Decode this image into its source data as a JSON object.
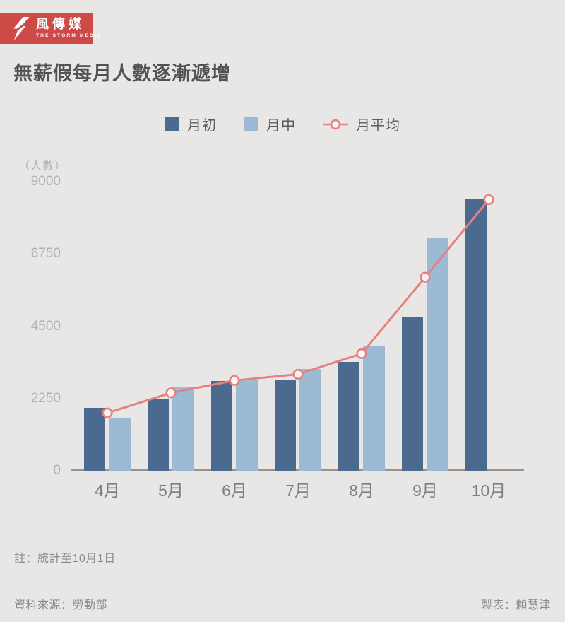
{
  "brand": {
    "logo_text": "風傳媒",
    "logo_subtext": "THE STORM MEDIA",
    "logo_bg": "#ce4a47"
  },
  "title": "無薪假每月人數逐漸遞增",
  "legend": [
    {
      "label": "月初",
      "type": "swatch",
      "color": "#4a6a8f"
    },
    {
      "label": "月中",
      "type": "swatch",
      "color": "#9dbad4"
    },
    {
      "label": "月平均",
      "type": "line-marker",
      "color": "#e8807d"
    }
  ],
  "chart_data": {
    "type": "bar+line",
    "title": "無薪假每月人數逐漸遞增",
    "unit_label": "（人數）",
    "categories": [
      "4月",
      "5月",
      "6月",
      "7月",
      "8月",
      "9月",
      "10月"
    ],
    "series": [
      {
        "name": "月初",
        "type": "bar",
        "color": "#4a6a8f",
        "values": [
          1950,
          2250,
          2790,
          2840,
          3400,
          4800,
          8440
        ]
      },
      {
        "name": "月中",
        "type": "bar",
        "color": "#9dbad4",
        "values": [
          1650,
          2600,
          2830,
          3170,
          3890,
          7250,
          null
        ]
      },
      {
        "name": "月平均",
        "type": "line",
        "color": "#e8807d",
        "marker_fill": "#fdf8f6",
        "values": [
          1800,
          2425,
          2810,
          3005,
          3645,
          6025,
          8440
        ]
      }
    ],
    "ylim": [
      0,
      9000
    ],
    "yticks": [
      0,
      2250,
      4500,
      6750,
      9000
    ],
    "grid": true,
    "legend_position": "top"
  },
  "note": "註：統計至10月1日",
  "footer": {
    "source": "資料來源：勞動部",
    "credit": "製表：賴慧津"
  }
}
